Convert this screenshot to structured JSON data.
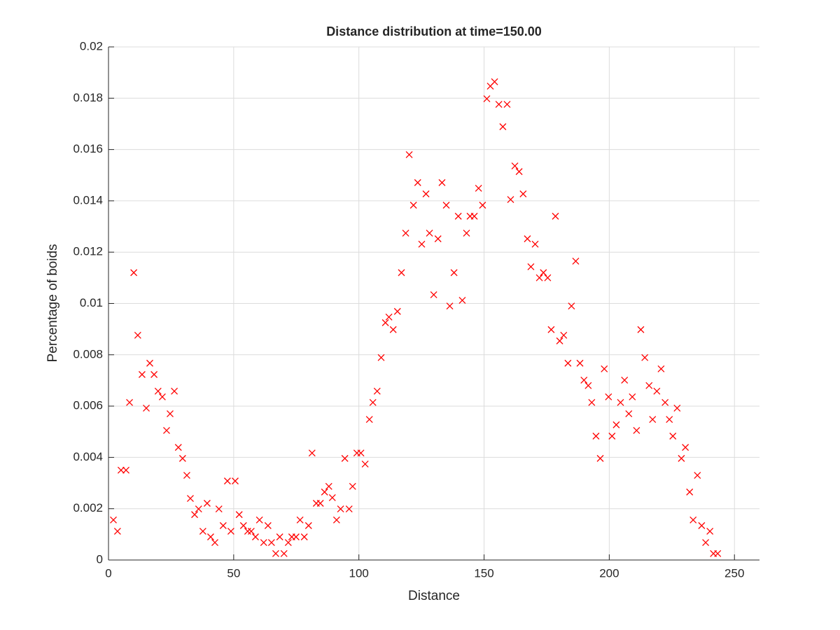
{
  "chart_data": {
    "type": "scatter",
    "title": "Distance distribution at time=150.00",
    "x_label": "Distance",
    "y_label": "Percentage of boids",
    "xlim": [
      0,
      260
    ],
    "ylim": [
      0,
      0.02
    ],
    "xticks": [
      0,
      50,
      100,
      150,
      200,
      250
    ],
    "yticks": [
      0,
      0.002,
      0.004,
      0.006,
      0.008,
      0.01,
      0.012,
      0.014,
      0.016,
      0.018,
      0.02
    ],
    "grid": true,
    "series": [
      {
        "color": "#ff0000",
        "x": [
          1.96,
          3.6,
          5.0,
          7.0,
          8.4,
          10.1,
          11.7,
          13.4,
          15.1,
          16.5,
          18.2,
          19.8,
          21.5,
          23.2,
          24.6,
          26.3,
          27.9,
          29.6,
          31.3,
          32.7,
          34.4,
          36.0,
          37.7,
          39.4,
          40.8,
          42.5,
          44.1,
          45.8,
          47.5,
          48.9,
          50.6,
          52.2,
          53.9,
          55.6,
          57.0,
          58.7,
          60.3,
          62.0,
          63.7,
          65.1,
          66.8,
          68.4,
          70.1,
          71.8,
          73.2,
          74.9,
          76.5,
          78.2,
          79.9,
          81.3,
          83.0,
          84.6,
          86.3,
          88.0,
          89.4,
          91.1,
          92.7,
          94.4,
          96.1,
          97.5,
          99.2,
          100.8,
          102.5,
          104.2,
          105.6,
          107.3,
          108.9,
          110.6,
          112.0,
          113.7,
          115.4,
          117.0,
          118.7,
          120.1,
          121.8,
          123.5,
          125.1,
          126.8,
          128.2,
          129.9,
          131.6,
          133.2,
          134.9,
          136.3,
          138.0,
          139.7,
          141.3,
          143.0,
          144.4,
          146.1,
          147.8,
          149.4,
          151.1,
          152.5,
          154.2,
          155.9,
          157.5,
          159.2,
          160.6,
          162.3,
          164.0,
          165.6,
          167.3,
          168.7,
          170.4,
          172.1,
          173.7,
          175.4,
          176.8,
          178.5,
          180.2,
          181.8,
          183.5,
          184.9,
          186.6,
          188.3,
          189.9,
          191.6,
          193.0,
          194.7,
          196.4,
          198.0,
          199.7,
          201.1,
          202.8,
          204.5,
          206.1,
          207.8,
          209.2,
          210.9,
          212.6,
          214.2,
          215.9,
          217.3,
          219.0,
          220.7,
          222.3,
          224.0,
          225.4,
          227.1,
          228.8,
          230.4,
          232.1,
          233.5,
          235.2,
          236.9,
          238.5,
          240.2,
          241.6,
          243.3
        ],
        "values": [
          0.00156,
          0.00112,
          0.0035,
          0.0035,
          0.00614,
          0.0112,
          0.00876,
          0.00723,
          0.00592,
          0.00767,
          0.00723,
          0.00658,
          0.00636,
          0.00505,
          0.0057,
          0.00658,
          0.00439,
          0.00396,
          0.0033,
          0.0024,
          0.00177,
          0.00199,
          0.00112,
          0.00221,
          0.0009,
          0.00068,
          0.00199,
          0.00134,
          0.00308,
          0.00112,
          0.00308,
          0.00177,
          0.00134,
          0.00112,
          0.00112,
          0.0009,
          0.00156,
          0.00068,
          0.00134,
          0.00068,
          0.00025,
          0.0009,
          0.00025,
          0.00068,
          0.0009,
          0.0009,
          0.00156,
          0.0009,
          0.00134,
          0.00417,
          0.00221,
          0.00221,
          0.00265,
          0.00287,
          0.00243,
          0.00156,
          0.00199,
          0.00396,
          0.00199,
          0.00287,
          0.00417,
          0.00417,
          0.00374,
          0.00548,
          0.00614,
          0.00658,
          0.00789,
          0.00925,
          0.00947,
          0.00898,
          0.00969,
          0.0112,
          0.01274,
          0.0158,
          0.01383,
          0.01471,
          0.01231,
          0.01427,
          0.01274,
          0.01034,
          0.01252,
          0.01471,
          0.01383,
          0.0099,
          0.0112,
          0.0134,
          0.01012,
          0.01274,
          0.0134,
          0.0134,
          0.01449,
          0.01383,
          0.01798,
          0.01847,
          0.01864,
          0.01776,
          0.01689,
          0.01776,
          0.01405,
          0.01536,
          0.01514,
          0.01427,
          0.01252,
          0.01143,
          0.01231,
          0.011,
          0.0112,
          0.011,
          0.00898,
          0.0134,
          0.00854,
          0.00876,
          0.00767,
          0.0099,
          0.01165,
          0.00767,
          0.00701,
          0.0068,
          0.00614,
          0.00483,
          0.00396,
          0.00745,
          0.00636,
          0.00483,
          0.00527,
          0.00614,
          0.00701,
          0.0057,
          0.00636,
          0.00505,
          0.00898,
          0.00789,
          0.0068,
          0.00548,
          0.00658,
          0.00745,
          0.00614,
          0.00548,
          0.00483,
          0.00592,
          0.00396,
          0.00439,
          0.00265,
          0.00156,
          0.0033,
          0.00134,
          0.00068,
          0.00112,
          0.00025,
          0.00025
        ]
      }
    ]
  }
}
